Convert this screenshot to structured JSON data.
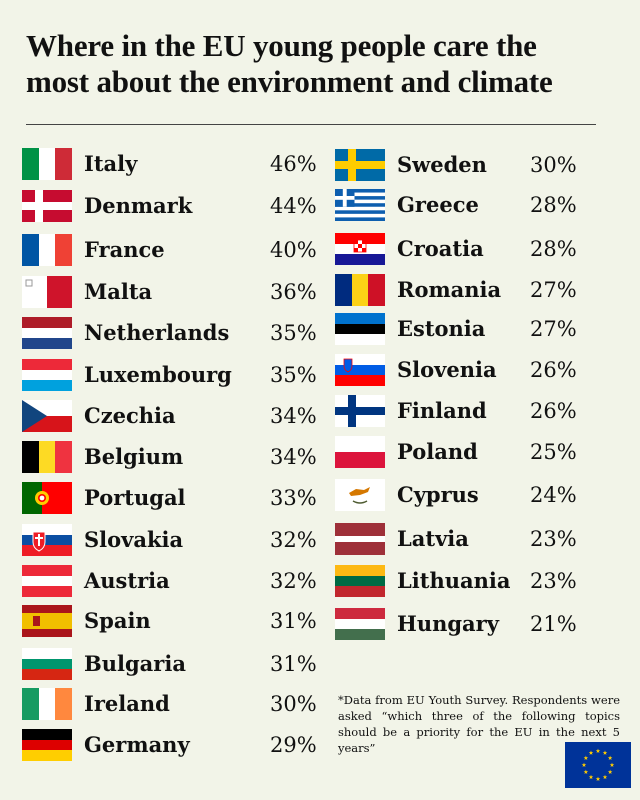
{
  "title": {
    "line1": "Where in the EU young people care the",
    "line2": "most about the environment and climate"
  },
  "footnote": "*Data from EU Youth Survey. Respondents were asked “which three of the following topics should be a priority for the EU in the next 5 years”",
  "chart_data": {
    "type": "table",
    "title": "Where in the EU young people care the most about the environment and climate",
    "columns": [
      {
        "rows": [
          {
            "country": "Italy",
            "value": "46%",
            "flag": "italy"
          },
          {
            "country": "Denmark",
            "value": "44%",
            "flag": "denmark"
          },
          {
            "country": "France",
            "value": "40%",
            "flag": "france"
          },
          {
            "country": "Malta",
            "value": "36%",
            "flag": "malta"
          },
          {
            "country": "Netherlands",
            "value": "35%",
            "flag": "netherlands"
          },
          {
            "country": "Luxembourg",
            "value": "35%",
            "flag": "luxembourg"
          },
          {
            "country": "Czechia",
            "value": "34%",
            "flag": "czechia"
          },
          {
            "country": "Belgium",
            "value": "34%",
            "flag": "belgium"
          },
          {
            "country": "Portugal",
            "value": "33%",
            "flag": "portugal"
          },
          {
            "country": "Slovakia",
            "value": "32%",
            "flag": "slovakia"
          },
          {
            "country": "Austria",
            "value": "32%",
            "flag": "austria"
          },
          {
            "country": "Spain",
            "value": "31%",
            "flag": "spain"
          },
          {
            "country": "Bulgaria",
            "value": "31%",
            "flag": "bulgaria"
          },
          {
            "country": "Ireland",
            "value": "30%",
            "flag": "ireland"
          },
          {
            "country": "Germany",
            "value": "29%",
            "flag": "germany"
          }
        ]
      },
      {
        "rows": [
          {
            "country": "Sweden",
            "value": "30%",
            "flag": "sweden"
          },
          {
            "country": "Greece",
            "value": "28%",
            "flag": "greece"
          },
          {
            "country": "Croatia",
            "value": "28%",
            "flag": "croatia"
          },
          {
            "country": "Romania",
            "value": "27%",
            "flag": "romania"
          },
          {
            "country": "Estonia",
            "value": "27%",
            "flag": "estonia"
          },
          {
            "country": "Slovenia",
            "value": "26%",
            "flag": "slovenia"
          },
          {
            "country": "Finland",
            "value": "26%",
            "flag": "finland"
          },
          {
            "country": "Poland",
            "value": "25%",
            "flag": "poland"
          },
          {
            "country": "Cyprus",
            "value": "24%",
            "flag": "cyprus"
          },
          {
            "country": "Latvia",
            "value": "23%",
            "flag": "latvia"
          },
          {
            "country": "Lithuania",
            "value": "23%",
            "flag": "lithuania"
          },
          {
            "country": "Hungary",
            "value": "21%",
            "flag": "hungary"
          }
        ]
      }
    ]
  }
}
